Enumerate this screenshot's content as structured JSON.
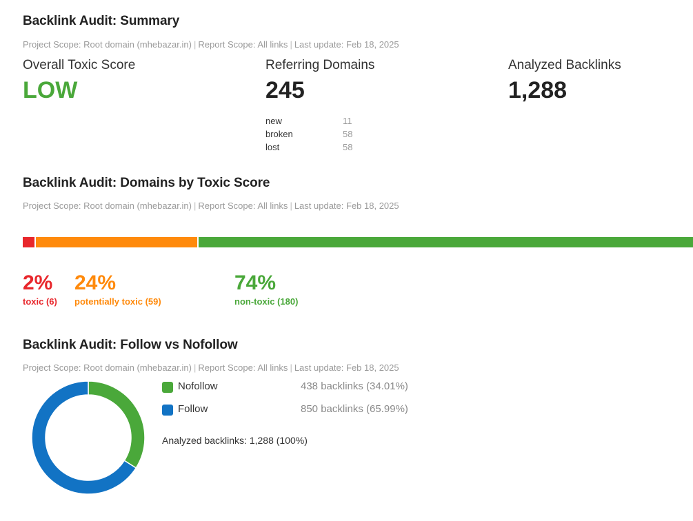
{
  "summary": {
    "title": "Backlink Audit: Summary",
    "scope": {
      "project": "Project Scope: Root domain (mhebazar.in)",
      "report": "Report Scope: All links",
      "updated": "Last update: Feb 18, 2025"
    },
    "toxic_score": {
      "label": "Overall Toxic Score",
      "value": "LOW",
      "color": "#4aa83a"
    },
    "referring_domains": {
      "label": "Referring Domains",
      "value": "245",
      "breakdown": [
        {
          "label": "new",
          "value": "11"
        },
        {
          "label": "broken",
          "value": "58"
        },
        {
          "label": "lost",
          "value": "58"
        }
      ]
    },
    "analyzed_backlinks": {
      "label": "Analyzed Backlinks",
      "value": "1,288"
    }
  },
  "domains_by_toxic": {
    "title": "Backlink Audit: Domains by Toxic Score",
    "scope": {
      "project": "Project Scope: Root domain (mhebazar.in)",
      "report": "Report Scope: All links",
      "updated": "Last update: Feb 18, 2025"
    },
    "segments": [
      {
        "pct": "2%",
        "label": "toxic (6)",
        "count": 6,
        "color": "#e8272c"
      },
      {
        "pct": "24%",
        "label": "potentially toxic (59)",
        "count": 59,
        "color": "#ff8a0c"
      },
      {
        "pct": "74%",
        "label": "non-toxic (180)",
        "count": 180,
        "color": "#4aa83a"
      }
    ]
  },
  "follow": {
    "title": "Backlink Audit: Follow vs Nofollow",
    "scope": {
      "project": "Project Scope: Root domain (mhebazar.in)",
      "report": "Report Scope: All links",
      "updated": "Last update: Feb 18, 2025"
    },
    "legend": [
      {
        "name": "Nofollow",
        "value": "438 backlinks (34.01%)",
        "color": "#4aa83a"
      },
      {
        "name": "Follow",
        "value": "850 backlinks (65.99%)",
        "color": "#1273c4"
      }
    ],
    "total": "Analyzed backlinks: 1,288 (100%)"
  },
  "chart_data": {
    "type": "pie",
    "categories": [
      "Nofollow",
      "Follow"
    ],
    "values": [
      438,
      850
    ],
    "percentages": [
      34.01,
      65.99
    ],
    "colors": [
      "#4aa83a",
      "#1273c4"
    ],
    "title": "",
    "donut": true
  }
}
